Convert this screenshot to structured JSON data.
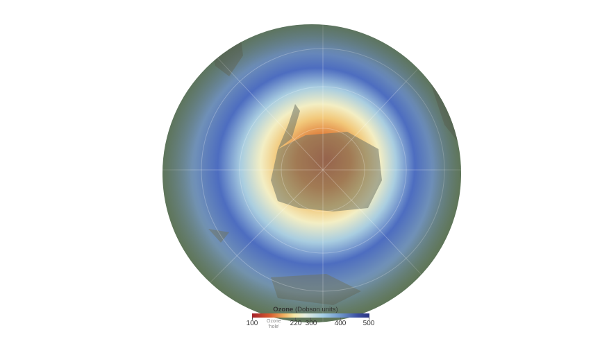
{
  "legend": {
    "title_bold": "Ozone",
    "title_rest": "(Dobson units)",
    "ticks": [
      "100",
      "220",
      "300",
      "400",
      "500"
    ],
    "hole_label_line1": "Ozone",
    "hole_label_line2": "'hole'",
    "colors": [
      "#a3212a",
      "#f0b060",
      "#f6e9a8",
      "#a8d0e6",
      "#2a3480"
    ]
  },
  "map": {
    "projection": "orthographic",
    "view": "south-polar",
    "subject": "Antarctica ozone concentration"
  }
}
